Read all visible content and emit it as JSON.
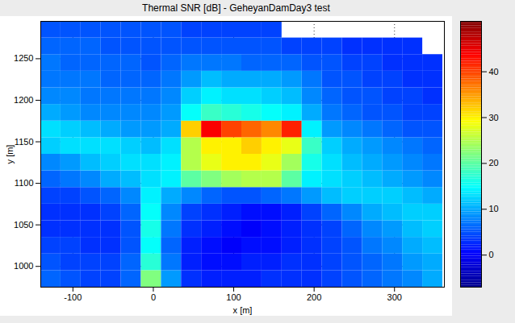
{
  "chart_data": {
    "type": "heatmap",
    "title": "Thermal SNR [dB] - GeheyanDamDay3 test",
    "x_label": "x [m]",
    "y_label": "y [m]",
    "xlim": [
      -140,
      362
    ],
    "ylim": [
      975,
      1295
    ],
    "xticks": [
      -100,
      0,
      100,
      200,
      300
    ],
    "yticks": [
      1000,
      1050,
      1100,
      1150,
      1200,
      1250
    ],
    "grid": true,
    "x": [
      -127.5,
      -102.5,
      -77.5,
      -52.5,
      -27.5,
      -2.5,
      22.5,
      47.5,
      72.5,
      97.5,
      122.5,
      147.5,
      172.5,
      197.5,
      222.5,
      247.5,
      272.5,
      297.5,
      322.5,
      347.5
    ],
    "y": [
      985,
      1005,
      1025,
      1045,
      1065,
      1085,
      1105,
      1125,
      1145,
      1165,
      1185,
      1205,
      1225,
      1245,
      1265,
      1285
    ],
    "z": [
      [
        6,
        5,
        4,
        4,
        6,
        22,
        9,
        3,
        2,
        2,
        2,
        3,
        3,
        3,
        4,
        5,
        6,
        7,
        8,
        10
      ],
      [
        5,
        4,
        4,
        4,
        6,
        17,
        7,
        2,
        1,
        1,
        2,
        2,
        3,
        3,
        4,
        5,
        6,
        7,
        9,
        10
      ],
      [
        4,
        4,
        3,
        3,
        5,
        15,
        6,
        2,
        1,
        0,
        1,
        1,
        2,
        3,
        4,
        5,
        7,
        8,
        10,
        11
      ],
      [
        3,
        3,
        3,
        3,
        5,
        16,
        7,
        3,
        2,
        1,
        0,
        1,
        2,
        3,
        4,
        6,
        8,
        9,
        11,
        12
      ],
      [
        3,
        3,
        3,
        4,
        6,
        15,
        8,
        4,
        3,
        2,
        1,
        1,
        2,
        4,
        6,
        8,
        10,
        11,
        12,
        12
      ],
      [
        4,
        4,
        5,
        6,
        8,
        14,
        10,
        8,
        6,
        5,
        5,
        6,
        7,
        9,
        11,
        12,
        12,
        12,
        11,
        10
      ],
      [
        6,
        7,
        8,
        10,
        11,
        13,
        14,
        20,
        22,
        24,
        25,
        25,
        20,
        14,
        13,
        12,
        11,
        10,
        9,
        8
      ],
      [
        8,
        9,
        11,
        12,
        13,
        13,
        14,
        25,
        28,
        30,
        30,
        28,
        24,
        16,
        13,
        11,
        10,
        9,
        8,
        7
      ],
      [
        12,
        13,
        13,
        13,
        12,
        11,
        13,
        25,
        30,
        30,
        32,
        30,
        28,
        18,
        12,
        10,
        9,
        8,
        7,
        6
      ],
      [
        13,
        12,
        11,
        10,
        9,
        9,
        10,
        32,
        44,
        40,
        38,
        36,
        42,
        14,
        9,
        8,
        7,
        6,
        5,
        5
      ],
      [
        10,
        9,
        8,
        8,
        8,
        8,
        9,
        15,
        18,
        17,
        16,
        15,
        14,
        10,
        7,
        6,
        5,
        5,
        4,
        4
      ],
      [
        8,
        8,
        7,
        7,
        7,
        7,
        8,
        12,
        14,
        13,
        13,
        12,
        11,
        8,
        6,
        5,
        5,
        4,
        4,
        3
      ],
      [
        7,
        7,
        7,
        6,
        6,
        6,
        7,
        9,
        11,
        10,
        10,
        10,
        9,
        7,
        5,
        5,
        4,
        4,
        3,
        3
      ],
      [
        7,
        6,
        6,
        6,
        6,
        5,
        6,
        7,
        7,
        7,
        6,
        6,
        6,
        5,
        5,
        4,
        4,
        3,
        3,
        3
      ],
      [
        6,
        6,
        6,
        5,
        5,
        5,
        5,
        5,
        5,
        5,
        5,
        5,
        4,
        4,
        4,
        3,
        3,
        3,
        3,
        null
      ],
      [
        5,
        5,
        5,
        5,
        5,
        5,
        5,
        4,
        4,
        4,
        4,
        4,
        null,
        null,
        null,
        null,
        null,
        null,
        null,
        null
      ]
    ],
    "colorbar": {
      "range": [
        -7,
        51
      ],
      "ticks": [
        0,
        10,
        20,
        30,
        40
      ]
    }
  }
}
